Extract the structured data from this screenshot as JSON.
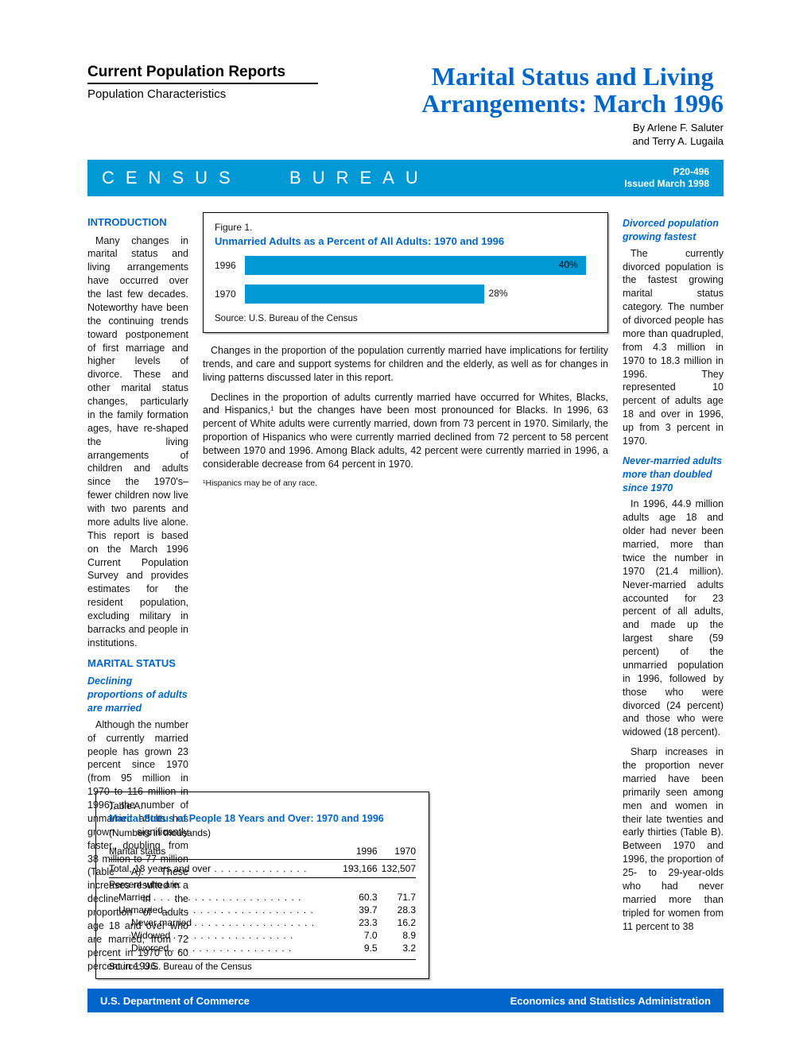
{
  "header": {
    "series": "Current Population Reports",
    "subseries": "Population Characteristics",
    "title_line1": "Marital Status and Living",
    "title_line2": "Arrangements: March 1996",
    "author_prefix": "By ",
    "author1": "Arlene F. Saluter",
    "author_and": "and ",
    "author2": "Terry A. Lugaila"
  },
  "bluebar": {
    "census": "CENSUS",
    "bureau": "BUREAU",
    "code": "P20-496",
    "issued": "Issued March 1998"
  },
  "colors": {
    "accent_blue": "#0066cc",
    "cyan": "#0099d6"
  },
  "intro": {
    "heading": "INTRODUCTION",
    "para": "Many changes in marital status and living arrangements have occurred over the last few decades. Noteworthy have been the continuing trends toward postponement of first marriage and higher levels of divorce. These and other marital status changes, particularly in the family formation ages, have re-shaped the living arrangements of children and adults since the 1970's–fewer children now live with two parents and more adults live alone. This report is based on the March 1996 Current Population Survey and provides estimates for the resident population, excluding military in barracks and people in institutions."
  },
  "marital_status": {
    "heading": "MARITAL STATUS",
    "sub1": "Declining proportions of adults are married",
    "para1": "Although the number of currently married people has grown 23 percent since 1970 (from 95 million in 1970 to 116 million in 1996), the number of unmarried adults has grown significantly faster, doubling from 38 million to 77 million (Table A). These increases resulted in a decline in the proportion of adults age 18 and over who are married, from 72 percent in 1970 to 60 percent in 1996."
  },
  "col2": {
    "para1": "Changes in the proportion of the population currently married have implications for fertility trends, and care and support systems for children and the elderly, as well as for changes in living patterns discussed later in this report.",
    "para2": "Declines in the proportion of adults currently married have occurred for Whites, Blacks, and Hispanics,¹ but the changes have been most pronounced for Blacks. In 1996, 63 percent of White adults were currently married, down from 73 percent in 1970. Similarly, the proportion of Hispanics who were currently married declined from 72 percent to 58 percent between 1970 and 1996. Among Black adults, 42 percent were currently married in 1996, a considerable decrease from 64 percent in 1970.",
    "footnote": "¹Hispanics may be of any race."
  },
  "col3": {
    "sub1": "Divorced population growing fastest",
    "para1": "The currently divorced population is the fastest growing marital status category. The number of divorced people has more than quadrupled, from 4.3 million in 1970 to 18.3 million in 1996. They represented 10 percent of adults age 18 and over in 1996, up from 3 percent in 1970.",
    "sub2": "Never-married adults more than doubled since 1970",
    "para2": "In 1996, 44.9 million adults age 18 and older had never been married, more than twice the number in 1970 (21.4 million). Never-married adults accounted for 23 percent of all adults, and made up the largest share (59 percent) of the unmarried population in 1996, followed by those who were divorced (24 percent) and those who were widowed (18 percent).",
    "para3": "Sharp increases in the proportion never married have been primarily seen among men and women in their late twenties and early thirties (Table B). Between 1970 and 1996, the proportion of 25- to 29-year-olds who had never married more than tripled for women from 11 percent to 38"
  },
  "figure1": {
    "num": "Figure 1.",
    "title": "Unmarried Adults as a Percent of All Adults: 1970 and 1996",
    "bars": [
      {
        "year": "1996",
        "value": 40,
        "label": "40%",
        "width_pct": 97
      },
      {
        "year": "1970",
        "value": 28,
        "label": "28%",
        "width_pct": 68
      }
    ],
    "source": "Source: U.S. Bureau of the Census",
    "bar_color": "#0099d6",
    "text_color": "#000000"
  },
  "tableA": {
    "num": "Table A.",
    "title": "Marital Status of People 18 Years and Over: 1970 and 1996",
    "note": "(Numbers in thousands)",
    "columns": [
      "Marital status",
      "1996",
      "1970"
    ],
    "total_label": "Total, 18 years and over",
    "total_1996": "193,166",
    "total_1970": "132,507",
    "pct_label": "Percent who are:",
    "rows": [
      {
        "label": "Married",
        "indent": 1,
        "v1996": "60.3",
        "v1970": "71.7"
      },
      {
        "label": "Unmarried",
        "indent": 1,
        "v1996": "39.7",
        "v1970": "28.3"
      },
      {
        "label": "Never married",
        "indent": 2,
        "v1996": "23.3",
        "v1970": "16.2"
      },
      {
        "label": "Widowed",
        "indent": 2,
        "v1996": "7.0",
        "v1970": "8.9"
      },
      {
        "label": "Divorced",
        "indent": 2,
        "v1996": "9.5",
        "v1970": "3.2"
      }
    ],
    "source": "Source: U.S. Bureau of the Census"
  },
  "footer": {
    "left": "U.S. Department of Commerce",
    "right": "Economics and Statistics Administration"
  }
}
